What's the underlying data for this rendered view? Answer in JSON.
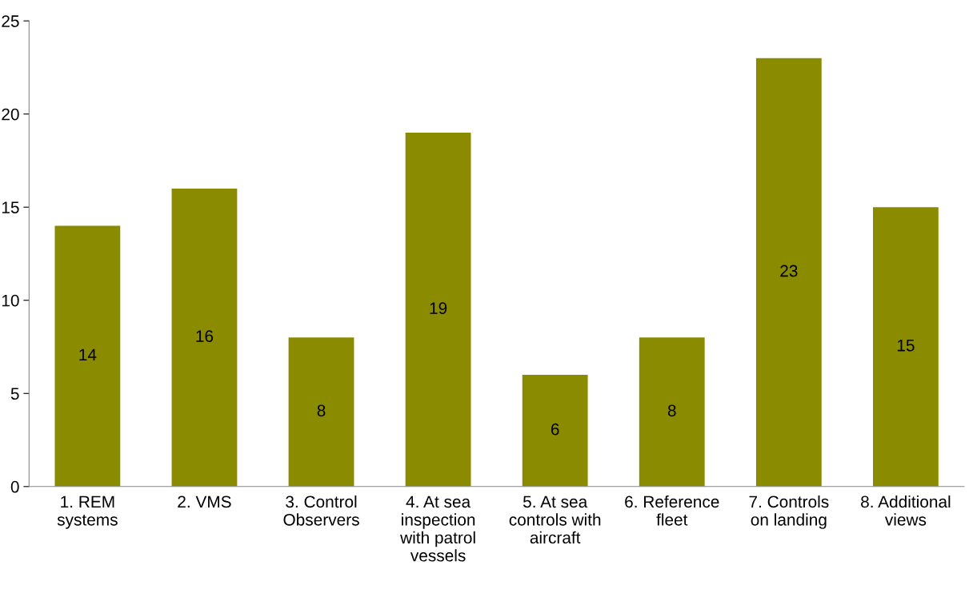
{
  "chart_data": {
    "type": "bar",
    "categories": [
      "1. REM systems",
      "2. VMS",
      "3. Control Observers",
      "4. At sea inspection with patrol vessels",
      "5. At sea controls with aircraft",
      "6. Reference fleet",
      "7. Controls on landing",
      "8. Additional views"
    ],
    "values": [
      14,
      16,
      8,
      19,
      6,
      8,
      23,
      15
    ],
    "color": "#8b8b00",
    "ylim": [
      0,
      25
    ],
    "yticks": [
      0,
      5,
      10,
      15,
      20,
      25
    ],
    "grid": false,
    "legend": false,
    "data_labels": true
  }
}
